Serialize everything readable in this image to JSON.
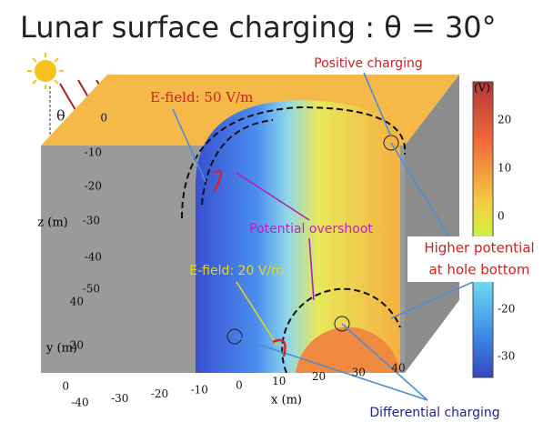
{
  "title": "Lunar surface charging : θ = 30°",
  "angle_label": "θ",
  "annotations": {
    "positive_charging": "Positive charging",
    "efield_50": "E-field: 50 V/m",
    "potential_overshoot": "Potential overshoot",
    "efield_20": "E-field: 20 V/m",
    "higher_potential": [
      "Higher potential",
      "at hole bottom"
    ],
    "differential_charging": "Differential charging"
  },
  "axes": {
    "z": {
      "label": "z (m)",
      "ticks": [
        "0",
        "-10",
        "-20",
        "-30",
        "-40",
        "-50"
      ]
    },
    "y": {
      "label": "y (m)",
      "ticks": [
        "40",
        "20",
        "0"
      ]
    },
    "x": {
      "label": "x (m)",
      "ticks": [
        "-40",
        "-30",
        "-20",
        "-10",
        "0",
        "10",
        "20",
        "30",
        "40"
      ]
    }
  },
  "colorbar": {
    "unit": "(V)",
    "ticks": [
      "20",
      "10",
      "0",
      "-20",
      "-30"
    ]
  }
}
